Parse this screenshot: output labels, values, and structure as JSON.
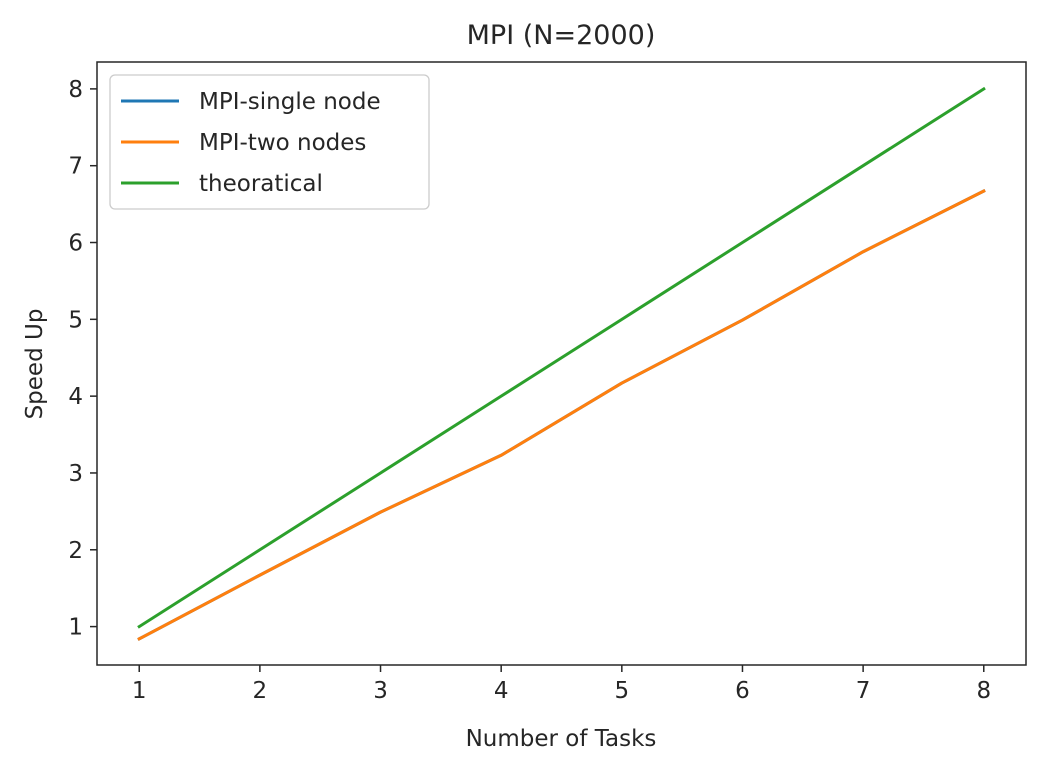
{
  "chart_data": {
    "type": "line",
    "title": "MPI (N=2000)",
    "xlabel": "Number of Tasks",
    "ylabel": "Speed Up",
    "x": [
      1,
      2,
      3,
      4,
      5,
      6,
      7,
      8
    ],
    "xlim": [
      0.65,
      8.35
    ],
    "ylim": [
      0.5,
      8.35
    ],
    "xticks": [
      1,
      2,
      3,
      4,
      5,
      6,
      7,
      8
    ],
    "yticks": [
      1,
      2,
      3,
      4,
      5,
      6,
      7,
      8
    ],
    "grid": false,
    "legend_position": "upper-left",
    "series": [
      {
        "name": "MPI-single node",
        "color": "#1f77b4",
        "values": [
          0.84,
          1.67,
          2.49,
          3.23,
          4.17,
          4.99,
          5.88,
          6.67
        ]
      },
      {
        "name": "MPI-two nodes",
        "color": "#ff7f0e",
        "values": [
          0.84,
          1.67,
          2.49,
          3.23,
          4.17,
          4.99,
          5.88,
          6.67
        ]
      },
      {
        "name": "theoratical",
        "color": "#2ca02c",
        "values": [
          1,
          2,
          3,
          4,
          5,
          6,
          7,
          8
        ]
      }
    ]
  }
}
